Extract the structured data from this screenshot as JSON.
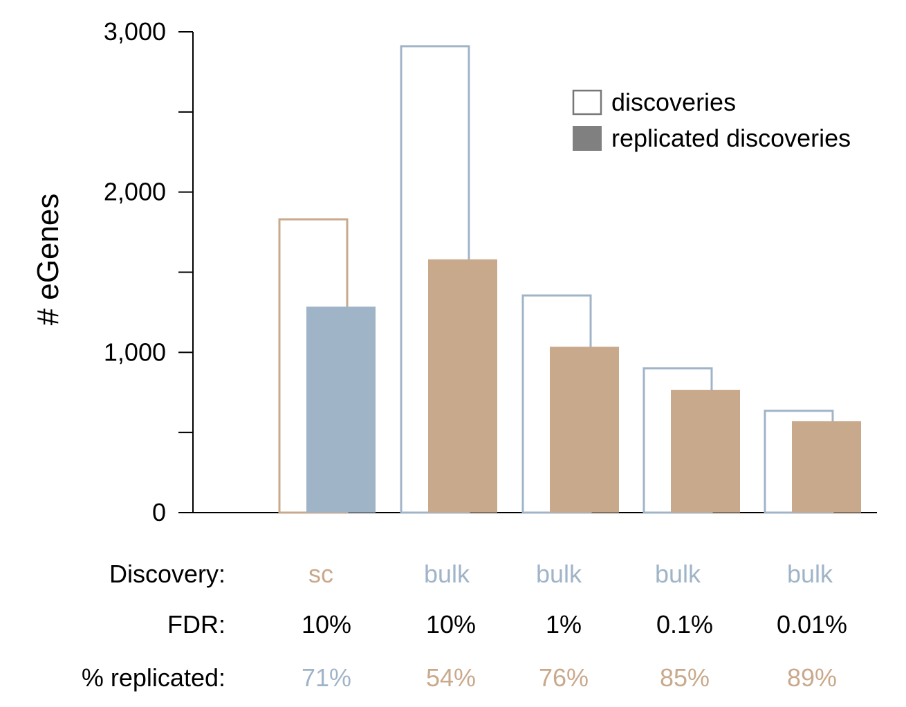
{
  "chart_data": {
    "type": "bar",
    "ylabel": "# eGenes",
    "ylim": [
      0,
      3000
    ],
    "yticks": [
      {
        "value": 0,
        "label": "0"
      },
      {
        "value": 500,
        "label": ""
      },
      {
        "value": 1000,
        "label": "1,000"
      },
      {
        "value": 1500,
        "label": ""
      },
      {
        "value": 2000,
        "label": "2,000"
      },
      {
        "value": 2500,
        "label": ""
      },
      {
        "value": 3000,
        "label": "3,000"
      }
    ],
    "groups": [
      {
        "discovery": "sc",
        "fdr": "10%",
        "pct": "71%",
        "discoveries": 1830,
        "replicated": 1285
      },
      {
        "discovery": "bulk",
        "fdr": "10%",
        "pct": "54%",
        "discoveries": 2910,
        "replicated": 1580
      },
      {
        "discovery": "bulk",
        "fdr": "1%",
        "pct": "76%",
        "discoveries": 1355,
        "replicated": 1035
      },
      {
        "discovery": "bulk",
        "fdr": "0.1%",
        "pct": "85%",
        "discoveries": 900,
        "replicated": 765
      },
      {
        "discovery": "bulk",
        "fdr": "0.01%",
        "pct": "89%",
        "discoveries": 635,
        "replicated": 570
      }
    ],
    "legend": {
      "position": "top-right",
      "discoveries": "discoveries",
      "replicated": "replicated discoveries"
    },
    "row_labels": {
      "discovery": "Discovery:",
      "fdr": "FDR:",
      "pct": "% replicated:"
    },
    "colors": {
      "sc": "#c9a98c",
      "bulk": "#a0b4c8",
      "legend_outline": "#777777",
      "legend_fill": "#808080"
    }
  }
}
